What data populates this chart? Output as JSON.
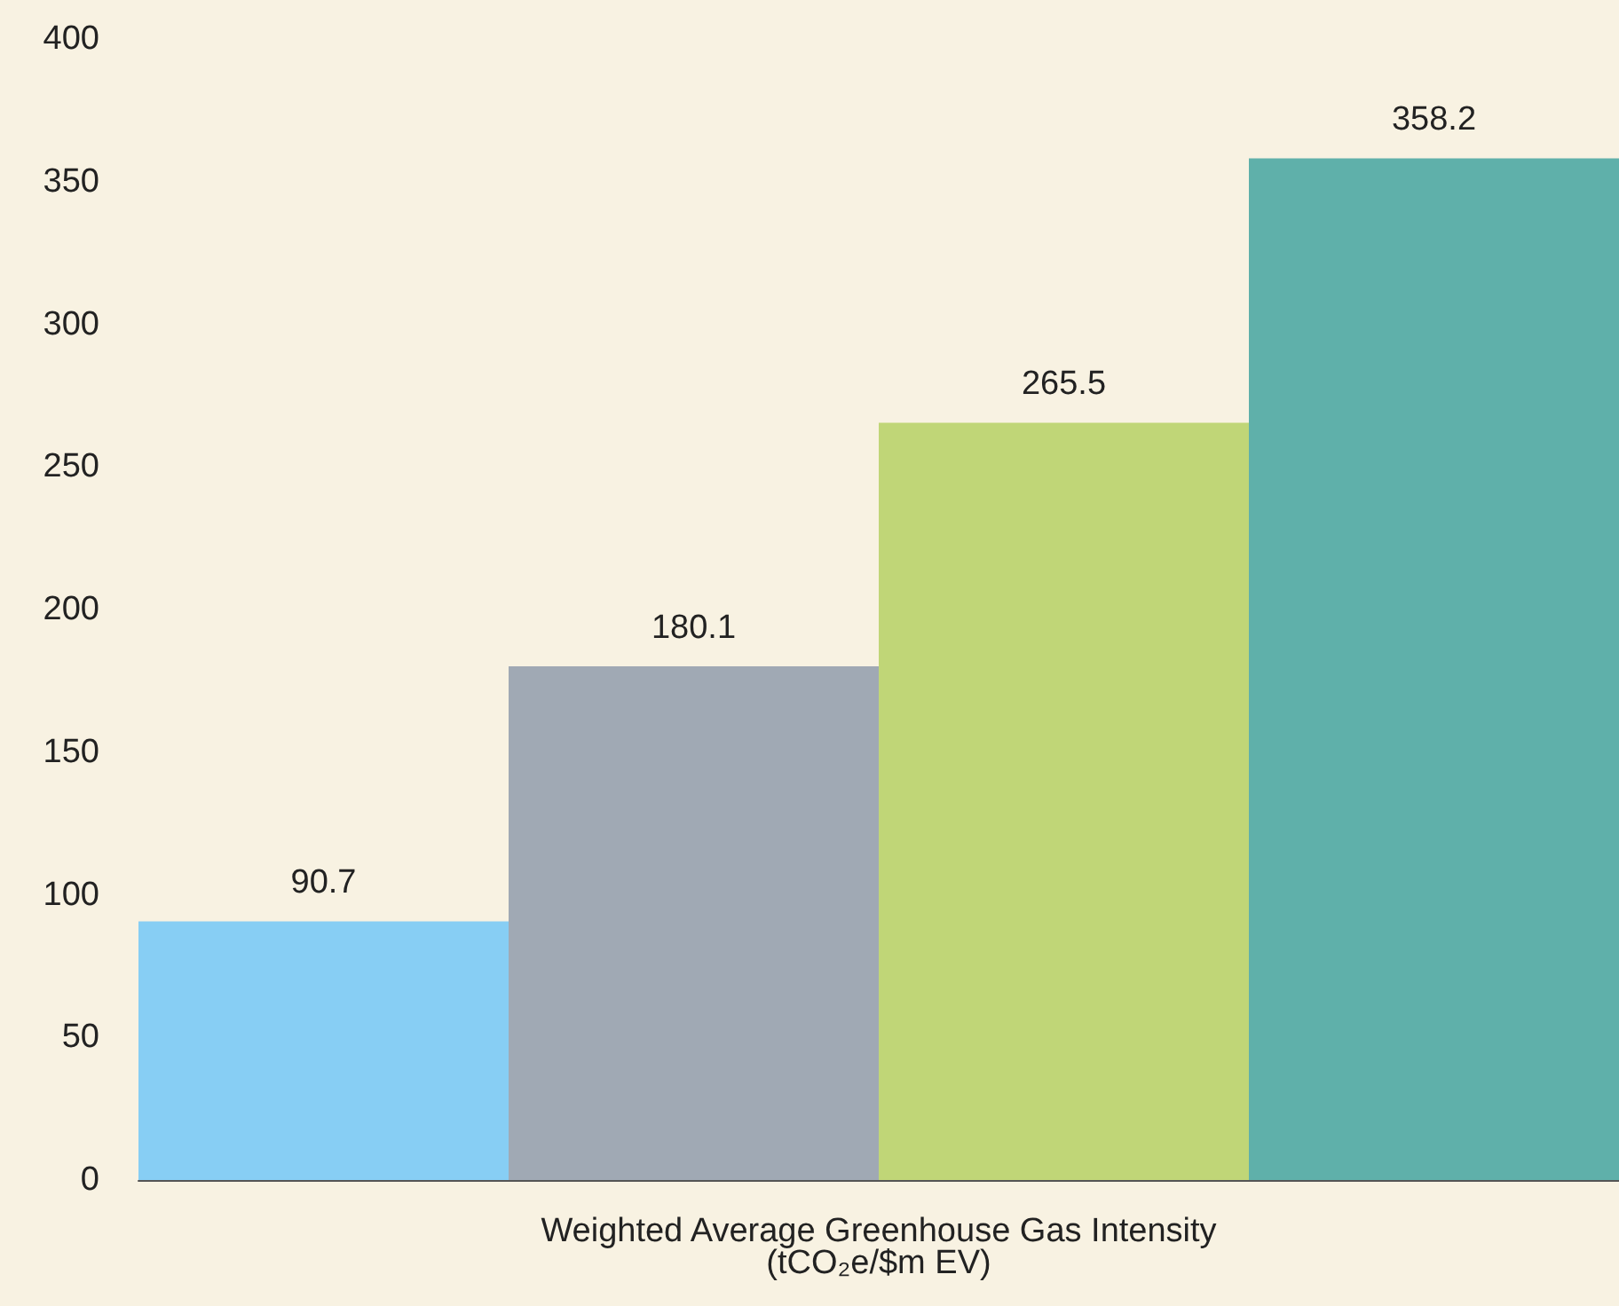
{
  "chart_data": {
    "type": "bar",
    "xlabel": "Weighted Average Greenhouse Gas Intensity\n(tCO₂e/$m EV)",
    "categories": [
      null,
      null,
      null,
      null
    ],
    "values": [
      90.7,
      180.1,
      265.5,
      358.2
    ],
    "colors": [
      "#87cef4",
      "#a0a9b4",
      "#c0d677",
      "#5fb0aa"
    ],
    "ylim": [
      0,
      400
    ],
    "yticks": [
      0,
      50,
      100,
      150,
      200,
      250,
      300,
      350,
      400
    ],
    "data_labels": true
  }
}
